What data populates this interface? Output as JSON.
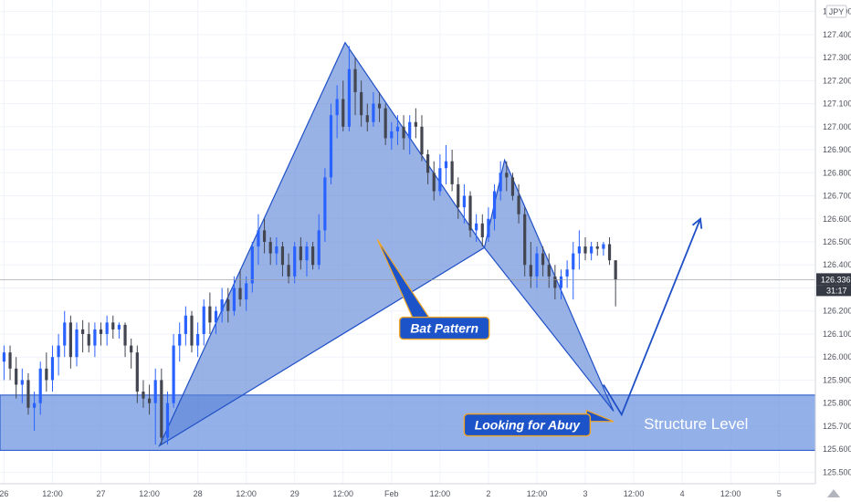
{
  "chart_data": {
    "type": "candlestick",
    "instrument_currency": "JPY",
    "y_range": [
      125.45,
      127.55
    ],
    "y_ticks": [
      "125.500",
      "125.600",
      "125.700",
      "125.800",
      "125.900",
      "126.000",
      "126.100",
      "126.200",
      "126.300",
      "126.400",
      "126.500",
      "126.600",
      "126.700",
      "126.800",
      "126.900",
      "127.000",
      "127.100",
      "127.200",
      "127.300",
      "127.400",
      "127.500"
    ],
    "x_ticks": [
      "26",
      "12:00",
      "27",
      "12:00",
      "28",
      "12:00",
      "29",
      "12:00",
      "Feb",
      "12:00",
      "2",
      "12:00",
      "3",
      "12:00",
      "4",
      "12:00",
      "5"
    ],
    "x_tick_hours": [
      0,
      12,
      24,
      36,
      48,
      60,
      72,
      84,
      96,
      108,
      120,
      132,
      144,
      156,
      168,
      180,
      192
    ],
    "x_start_hour": -1,
    "x_end_hour": 201,
    "last_price": "126.336",
    "countdown": "31:17",
    "colors": {
      "up": "#2962ff",
      "down": "#434651",
      "fill": "#5b83d6",
      "zone": "#6f95e0",
      "line": "#1e4fc7",
      "callout_bg": "#1d53c9",
      "callout_border": "#f2a626"
    },
    "structure_zone": {
      "top": 125.835,
      "bottom": 125.595,
      "label": "Structure Level"
    },
    "bat_pattern": {
      "label": "Bat Pattern",
      "X": {
        "t": 38.5,
        "price": 125.615
      },
      "A": {
        "t": 84.5,
        "price": 127.365
      },
      "B": {
        "t": 119,
        "price": 126.475
      },
      "C": {
        "t": 124,
        "price": 126.855
      },
      "D": {
        "t": 151,
        "price": 125.765
      }
    },
    "projection": [
      {
        "t": 148.5,
        "price": 125.88
      },
      {
        "t": 153,
        "price": 125.75
      },
      {
        "t": 172.5,
        "price": 126.6
      }
    ],
    "annotations": [
      {
        "text": "Bat Pattern",
        "box_t": 98,
        "box_price": 126.165,
        "pointer_t": 92.5,
        "pointer_price": 126.51
      },
      {
        "text": "Looking for Abuy",
        "box_t": 114,
        "box_price": 125.745,
        "pointer_t": 151,
        "pointer_price": 125.72
      }
    ],
    "candles": [
      {
        "t": 0,
        "o": 125.98,
        "h": 126.05,
        "l": 125.9,
        "c": 126.02
      },
      {
        "t": 1.5,
        "o": 126.02,
        "h": 126.05,
        "l": 125.9,
        "c": 125.95
      },
      {
        "t": 3,
        "o": 125.95,
        "h": 126.0,
        "l": 125.82,
        "c": 125.88
      },
      {
        "t": 4.5,
        "o": 125.88,
        "h": 125.95,
        "l": 125.8,
        "c": 125.9
      },
      {
        "t": 6,
        "o": 125.9,
        "h": 125.93,
        "l": 125.75,
        "c": 125.78
      },
      {
        "t": 7.5,
        "o": 125.78,
        "h": 125.85,
        "l": 125.68,
        "c": 125.8
      },
      {
        "t": 9,
        "o": 125.8,
        "h": 125.98,
        "l": 125.75,
        "c": 125.95
      },
      {
        "t": 10.5,
        "o": 125.95,
        "h": 126.02,
        "l": 125.85,
        "c": 125.9
      },
      {
        "t": 12,
        "o": 125.9,
        "h": 126.05,
        "l": 125.85,
        "c": 126.0
      },
      {
        "t": 13.5,
        "o": 126.0,
        "h": 126.1,
        "l": 125.92,
        "c": 126.05
      },
      {
        "t": 15,
        "o": 126.05,
        "h": 126.2,
        "l": 126.0,
        "c": 126.15
      },
      {
        "t": 16.5,
        "o": 126.15,
        "h": 126.18,
        "l": 125.95,
        "c": 126.0
      },
      {
        "t": 18,
        "o": 126.0,
        "h": 126.15,
        "l": 125.96,
        "c": 126.12
      },
      {
        "t": 19.5,
        "o": 126.12,
        "h": 126.16,
        "l": 126.02,
        "c": 126.1
      },
      {
        "t": 21,
        "o": 126.1,
        "h": 126.15,
        "l": 126.02,
        "c": 126.05
      },
      {
        "t": 22.5,
        "o": 126.05,
        "h": 126.15,
        "l": 126.0,
        "c": 126.12
      },
      {
        "t": 24,
        "o": 126.12,
        "h": 126.15,
        "l": 126.05,
        "c": 126.1
      },
      {
        "t": 25.5,
        "o": 126.1,
        "h": 126.18,
        "l": 126.05,
        "c": 126.15
      },
      {
        "t": 27,
        "o": 126.15,
        "h": 126.18,
        "l": 126.08,
        "c": 126.12
      },
      {
        "t": 28.5,
        "o": 126.12,
        "h": 126.15,
        "l": 126.08,
        "c": 126.14
      },
      {
        "t": 30,
        "o": 126.14,
        "h": 126.15,
        "l": 126.0,
        "c": 126.05
      },
      {
        "t": 31.5,
        "o": 126.05,
        "h": 126.08,
        "l": 125.95,
        "c": 126.02
      },
      {
        "t": 33,
        "o": 126.02,
        "h": 126.05,
        "l": 125.8,
        "c": 125.85
      },
      {
        "t": 34.5,
        "o": 125.85,
        "h": 125.9,
        "l": 125.78,
        "c": 125.82
      },
      {
        "t": 36,
        "o": 125.82,
        "h": 125.88,
        "l": 125.75,
        "c": 125.8
      },
      {
        "t": 37.5,
        "o": 125.8,
        "h": 125.95,
        "l": 125.62,
        "c": 125.9
      },
      {
        "t": 39,
        "o": 125.9,
        "h": 125.95,
        "l": 125.62,
        "c": 125.65
      },
      {
        "t": 40.5,
        "o": 125.65,
        "h": 125.85,
        "l": 125.62,
        "c": 125.8
      },
      {
        "t": 42,
        "o": 125.8,
        "h": 126.1,
        "l": 125.78,
        "c": 126.05
      },
      {
        "t": 43.5,
        "o": 126.05,
        "h": 126.15,
        "l": 125.98,
        "c": 126.1
      },
      {
        "t": 45,
        "o": 126.1,
        "h": 126.22,
        "l": 126.05,
        "c": 126.18
      },
      {
        "t": 46.5,
        "o": 126.18,
        "h": 126.2,
        "l": 126.02,
        "c": 126.05
      },
      {
        "t": 48,
        "o": 126.05,
        "h": 126.15,
        "l": 126.0,
        "c": 126.1
      },
      {
        "t": 49.5,
        "o": 126.1,
        "h": 126.25,
        "l": 126.05,
        "c": 126.22
      },
      {
        "t": 51,
        "o": 126.22,
        "h": 126.28,
        "l": 126.1,
        "c": 126.15
      },
      {
        "t": 52.5,
        "o": 126.15,
        "h": 126.22,
        "l": 126.1,
        "c": 126.2
      },
      {
        "t": 54,
        "o": 126.2,
        "h": 126.3,
        "l": 126.15,
        "c": 126.25
      },
      {
        "t": 55.5,
        "o": 126.25,
        "h": 126.3,
        "l": 126.15,
        "c": 126.2
      },
      {
        "t": 57,
        "o": 126.2,
        "h": 126.35,
        "l": 126.18,
        "c": 126.3
      },
      {
        "t": 58.5,
        "o": 126.3,
        "h": 126.38,
        "l": 126.22,
        "c": 126.25
      },
      {
        "t": 60,
        "o": 126.25,
        "h": 126.35,
        "l": 126.2,
        "c": 126.32
      },
      {
        "t": 61.5,
        "o": 126.32,
        "h": 126.5,
        "l": 126.28,
        "c": 126.48
      },
      {
        "t": 63,
        "o": 126.48,
        "h": 126.62,
        "l": 126.4,
        "c": 126.55
      },
      {
        "t": 64.5,
        "o": 126.55,
        "h": 126.6,
        "l": 126.45,
        "c": 126.5
      },
      {
        "t": 66,
        "o": 126.5,
        "h": 126.52,
        "l": 126.4,
        "c": 126.45
      },
      {
        "t": 67.5,
        "o": 126.45,
        "h": 126.52,
        "l": 126.4,
        "c": 126.48
      },
      {
        "t": 69,
        "o": 126.48,
        "h": 126.5,
        "l": 126.35,
        "c": 126.4
      },
      {
        "t": 70.5,
        "o": 126.4,
        "h": 126.45,
        "l": 126.32,
        "c": 126.35
      },
      {
        "t": 72,
        "o": 126.35,
        "h": 126.5,
        "l": 126.32,
        "c": 126.48
      },
      {
        "t": 73.5,
        "o": 126.48,
        "h": 126.52,
        "l": 126.38,
        "c": 126.42
      },
      {
        "t": 75,
        "o": 126.42,
        "h": 126.5,
        "l": 126.35,
        "c": 126.48
      },
      {
        "t": 76.5,
        "o": 126.48,
        "h": 126.5,
        "l": 126.38,
        "c": 126.4
      },
      {
        "t": 78,
        "o": 126.4,
        "h": 126.62,
        "l": 126.38,
        "c": 126.55
      },
      {
        "t": 79.5,
        "o": 126.55,
        "h": 126.82,
        "l": 126.5,
        "c": 126.78
      },
      {
        "t": 81,
        "o": 126.78,
        "h": 127.1,
        "l": 126.75,
        "c": 127.05
      },
      {
        "t": 82.5,
        "o": 127.05,
        "h": 127.18,
        "l": 126.95,
        "c": 127.12
      },
      {
        "t": 84,
        "o": 127.12,
        "h": 127.2,
        "l": 126.98,
        "c": 127.0
      },
      {
        "t": 85.5,
        "o": 127.0,
        "h": 127.35,
        "l": 126.98,
        "c": 127.25
      },
      {
        "t": 87,
        "o": 127.25,
        "h": 127.3,
        "l": 127.05,
        "c": 127.15
      },
      {
        "t": 88.5,
        "o": 127.15,
        "h": 127.2,
        "l": 127.0,
        "c": 127.05
      },
      {
        "t": 90,
        "o": 127.05,
        "h": 127.1,
        "l": 126.98,
        "c": 127.02
      },
      {
        "t": 91.5,
        "o": 127.02,
        "h": 127.15,
        "l": 127.0,
        "c": 127.1
      },
      {
        "t": 93,
        "o": 127.1,
        "h": 127.15,
        "l": 127.02,
        "c": 127.08
      },
      {
        "t": 94.5,
        "o": 127.08,
        "h": 127.1,
        "l": 126.92,
        "c": 126.95
      },
      {
        "t": 96,
        "o": 126.95,
        "h": 127.02,
        "l": 126.9,
        "c": 126.98
      },
      {
        "t": 97.5,
        "o": 126.98,
        "h": 127.05,
        "l": 126.92,
        "c": 127.0
      },
      {
        "t": 99,
        "o": 127.0,
        "h": 127.05,
        "l": 126.9,
        "c": 126.95
      },
      {
        "t": 100.5,
        "o": 126.95,
        "h": 127.05,
        "l": 126.88,
        "c": 127.02
      },
      {
        "t": 102,
        "o": 127.02,
        "h": 127.08,
        "l": 126.95,
        "c": 127.0
      },
      {
        "t": 103.5,
        "o": 127.0,
        "h": 127.05,
        "l": 126.85,
        "c": 126.88
      },
      {
        "t": 105,
        "o": 126.88,
        "h": 126.9,
        "l": 126.75,
        "c": 126.8
      },
      {
        "t": 106.5,
        "o": 126.8,
        "h": 126.85,
        "l": 126.68,
        "c": 126.72
      },
      {
        "t": 108,
        "o": 126.72,
        "h": 126.88,
        "l": 126.7,
        "c": 126.82
      },
      {
        "t": 109.5,
        "o": 126.82,
        "h": 126.92,
        "l": 126.75,
        "c": 126.85
      },
      {
        "t": 111,
        "o": 126.85,
        "h": 126.9,
        "l": 126.72,
        "c": 126.75
      },
      {
        "t": 112.5,
        "o": 126.75,
        "h": 126.78,
        "l": 126.6,
        "c": 126.65
      },
      {
        "t": 114,
        "o": 126.65,
        "h": 126.75,
        "l": 126.58,
        "c": 126.7
      },
      {
        "t": 115.5,
        "o": 126.7,
        "h": 126.72,
        "l": 126.52,
        "c": 126.55
      },
      {
        "t": 117,
        "o": 126.55,
        "h": 126.62,
        "l": 126.5,
        "c": 126.58
      },
      {
        "t": 118.5,
        "o": 126.58,
        "h": 126.62,
        "l": 126.48,
        "c": 126.52
      },
      {
        "t": 120,
        "o": 126.52,
        "h": 126.65,
        "l": 126.5,
        "c": 126.6
      },
      {
        "t": 121.5,
        "o": 126.6,
        "h": 126.75,
        "l": 126.55,
        "c": 126.72
      },
      {
        "t": 123,
        "o": 126.72,
        "h": 126.85,
        "l": 126.68,
        "c": 126.8
      },
      {
        "t": 124.5,
        "o": 126.8,
        "h": 126.85,
        "l": 126.72,
        "c": 126.78
      },
      {
        "t": 126,
        "o": 126.78,
        "h": 126.8,
        "l": 126.68,
        "c": 126.7
      },
      {
        "t": 127.5,
        "o": 126.7,
        "h": 126.75,
        "l": 126.58,
        "c": 126.62
      },
      {
        "t": 129,
        "o": 126.62,
        "h": 126.65,
        "l": 126.35,
        "c": 126.4
      },
      {
        "t": 130.5,
        "o": 126.4,
        "h": 126.5,
        "l": 126.3,
        "c": 126.35
      },
      {
        "t": 132,
        "o": 126.35,
        "h": 126.48,
        "l": 126.3,
        "c": 126.45
      },
      {
        "t": 133.5,
        "o": 126.45,
        "h": 126.48,
        "l": 126.35,
        "c": 126.4
      },
      {
        "t": 135,
        "o": 126.4,
        "h": 126.45,
        "l": 126.3,
        "c": 126.35
      },
      {
        "t": 136.5,
        "o": 126.35,
        "h": 126.4,
        "l": 126.25,
        "c": 126.3
      },
      {
        "t": 138,
        "o": 126.3,
        "h": 126.38,
        "l": 126.25,
        "c": 126.35
      },
      {
        "t": 139.5,
        "o": 126.35,
        "h": 126.42,
        "l": 126.3,
        "c": 126.38
      },
      {
        "t": 141,
        "o": 126.38,
        "h": 126.5,
        "l": 126.25,
        "c": 126.45
      },
      {
        "t": 142.5,
        "o": 126.45,
        "h": 126.55,
        "l": 126.38,
        "c": 126.48
      },
      {
        "t": 144,
        "o": 126.48,
        "h": 126.52,
        "l": 126.42,
        "c": 126.45
      },
      {
        "t": 145.5,
        "o": 126.45,
        "h": 126.5,
        "l": 126.42,
        "c": 126.48
      },
      {
        "t": 147,
        "o": 126.48,
        "h": 126.5,
        "l": 126.44,
        "c": 126.47
      },
      {
        "t": 148.5,
        "o": 126.47,
        "h": 126.5,
        "l": 126.44,
        "c": 126.49
      },
      {
        "t": 150,
        "o": 126.49,
        "h": 126.52,
        "l": 126.4,
        "c": 126.42
      },
      {
        "t": 151.5,
        "o": 126.42,
        "h": 126.42,
        "l": 126.22,
        "c": 126.336
      }
    ]
  }
}
